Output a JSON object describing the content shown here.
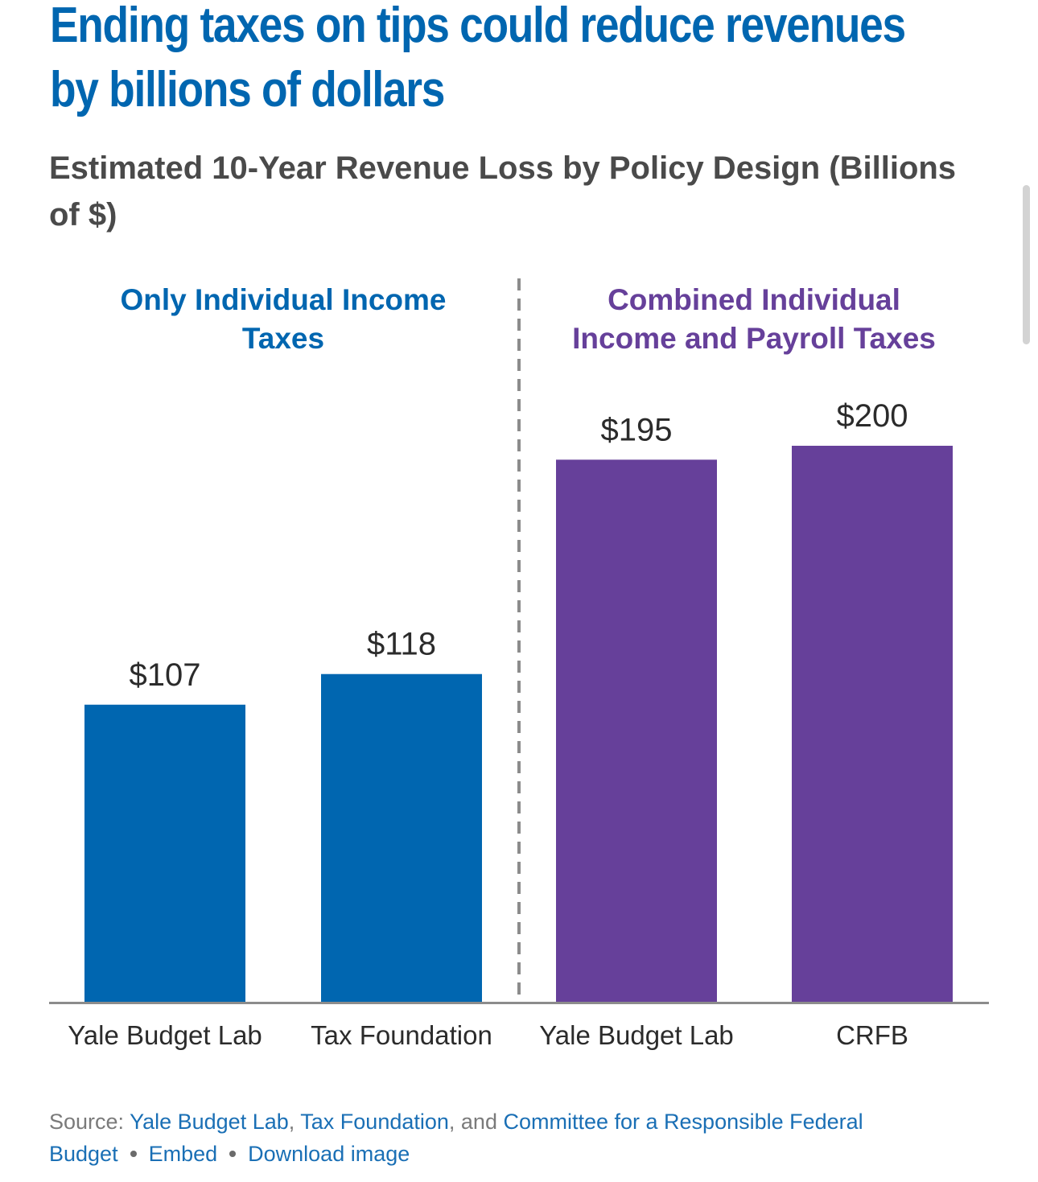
{
  "title_lines": [
    "Ending taxes on tips could reduce revenues",
    "by billions of dollars"
  ],
  "subtitle_lines": [
    "Estimated 10-Year Revenue Loss by Policy Design (Billions",
    "of $)"
  ],
  "chart_data": {
    "type": "bar",
    "categories": [
      "Yale Budget Lab",
      "Tax Foundation",
      "Yale Budget Lab",
      "CRFB"
    ],
    "values": [
      107,
      118,
      195,
      200
    ],
    "value_labels": [
      "$107",
      "$118",
      "$195",
      "$200"
    ],
    "groups": [
      {
        "label_lines": [
          "Only Individual Income",
          "Taxes"
        ],
        "color": "#0066b0",
        "bar_indices": [
          0,
          1
        ]
      },
      {
        "label_lines": [
          "Combined Individual",
          "Income and Payroll Taxes"
        ],
        "color": "#66409a",
        "bar_indices": [
          2,
          3
        ]
      }
    ],
    "ylim": [
      0,
      200
    ],
    "grid": false,
    "group_separator": "dashed"
  },
  "footer": {
    "source_prefix": "Source:",
    "links": [
      "Yale Budget Lab",
      "Tax Foundation",
      "Committee for a Responsible Federal",
      "Budget"
    ],
    "comma": ",",
    "and_text": ", and",
    "actions": [
      "Embed",
      "Download image"
    ]
  },
  "colors": {
    "title": "#0066b0",
    "subtitle": "#4a4a4a",
    "individual_bars": "#0066b0",
    "combined_bars": "#66409a",
    "axis": "#8c8c8c",
    "link": "#1a6fb5"
  }
}
